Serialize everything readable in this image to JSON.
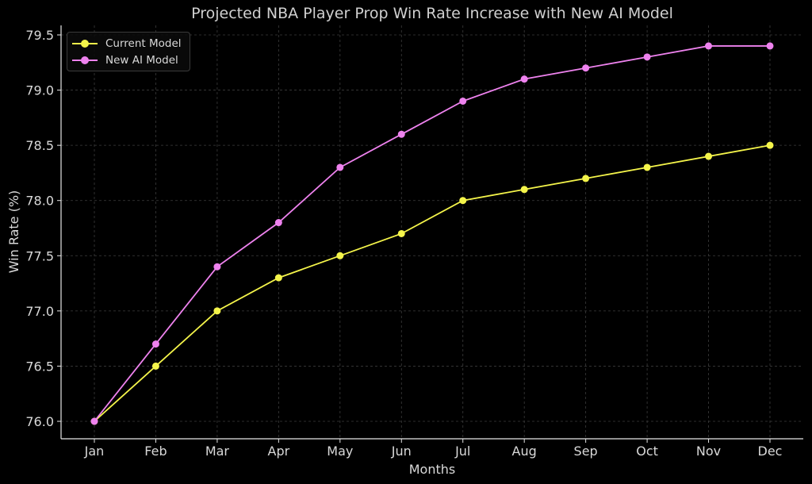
{
  "chart_data": {
    "type": "line",
    "title": "Projected NBA Player Prop Win Rate Increase with New AI Model",
    "xlabel": "Months",
    "ylabel": "Win Rate (%)",
    "categories": [
      "Jan",
      "Feb",
      "Mar",
      "Apr",
      "May",
      "Jun",
      "Jul",
      "Aug",
      "Sep",
      "Oct",
      "Nov",
      "Dec"
    ],
    "series": [
      {
        "name": "Current Model",
        "color": "#f4f44a",
        "values": [
          76.0,
          76.5,
          77.0,
          77.3,
          77.5,
          77.7,
          78.0,
          78.1,
          78.2,
          78.3,
          78.4,
          78.5
        ]
      },
      {
        "name": "New AI Model",
        "color": "#ee82ee",
        "values": [
          76.0,
          76.7,
          77.4,
          77.8,
          78.3,
          78.6,
          78.9,
          79.1,
          79.2,
          79.3,
          79.4,
          79.4
        ]
      }
    ],
    "yticks": [
      "76.0",
      "76.5",
      "77.0",
      "77.5",
      "78.0",
      "78.5",
      "79.0",
      "79.5"
    ],
    "ylim": [
      75.84,
      79.59
    ],
    "grid": true,
    "legend_position": "upper left",
    "background": "#000000"
  }
}
